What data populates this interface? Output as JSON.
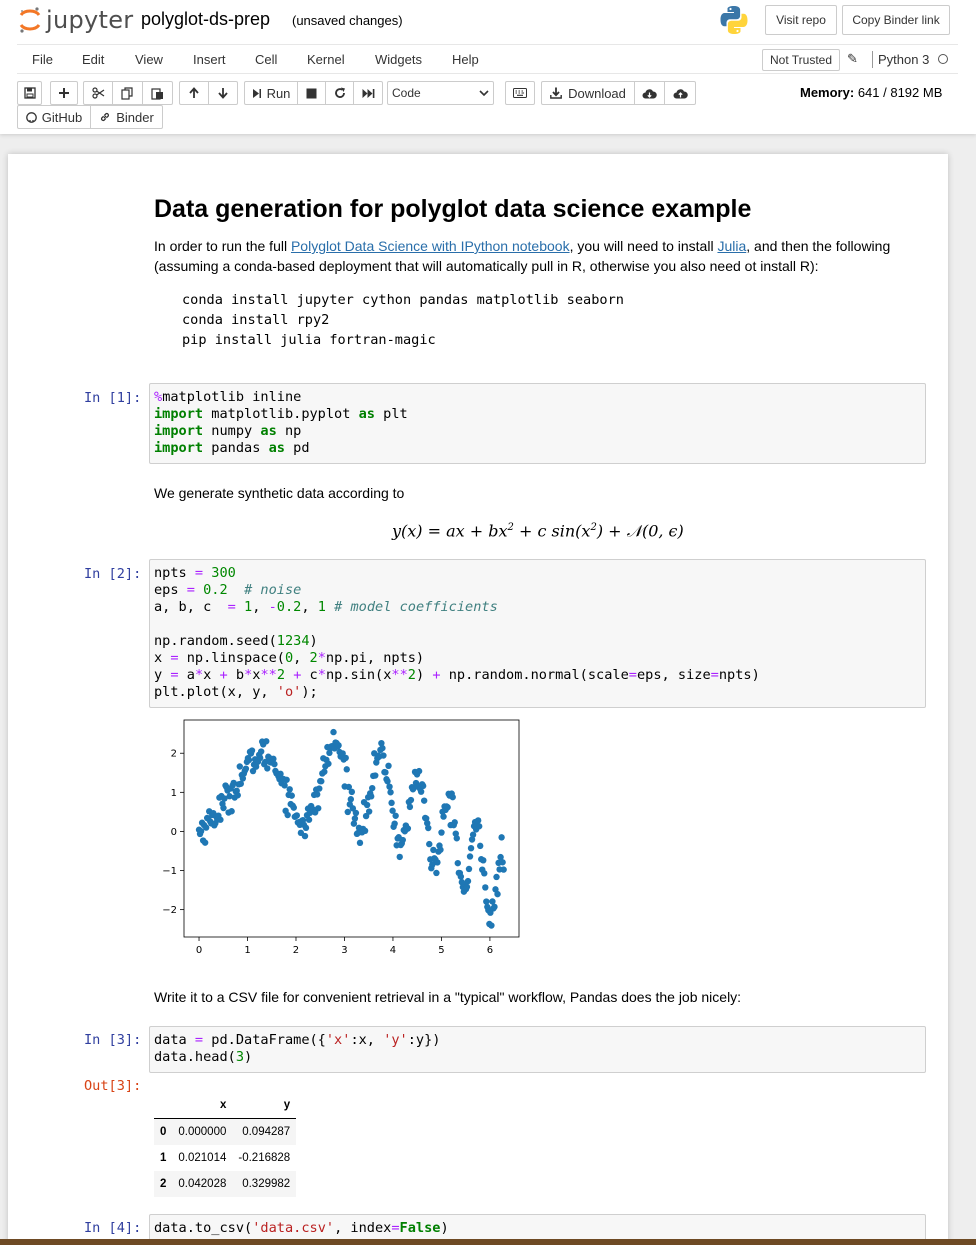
{
  "header": {
    "logo_text": "jupyter",
    "notebook_title": "polyglot-ds-prep",
    "save_status": "(unsaved changes)",
    "visit_repo": "Visit repo",
    "copy_binder": "Copy Binder link"
  },
  "menu": {
    "items": [
      "File",
      "Edit",
      "View",
      "Insert",
      "Cell",
      "Kernel",
      "Widgets",
      "Help"
    ],
    "not_trusted": "Not Trusted",
    "kernel_name": "Python 3"
  },
  "toolbar": {
    "run_label": "Run",
    "cell_type": "Code",
    "download_label": "Download",
    "github_label": "GitHub",
    "binder_label": "Binder",
    "memory_label": "Memory:",
    "memory_value": "641 / 8192 MB"
  },
  "cells": {
    "md1": {
      "title": "Data generation for polyglot data science example",
      "p_before": "In order to run the full ",
      "link1": "Polyglot Data Science with IPython notebook",
      "p_mid": ", you will need to install ",
      "link2": "Julia",
      "p_after": ", and then the following (assuming a conda-based deployment that will automatically pull in R, otherwise you also need ot install R):",
      "code_lines": [
        "conda install jupyter cython pandas matplotlib seaborn",
        "conda install rpy2",
        "pip install julia fortran-magic"
      ]
    },
    "c1": {
      "prompt": "In [1]:"
    },
    "md2": {
      "text": "We generate synthetic data according to"
    },
    "c2": {
      "prompt": "In [2]:"
    },
    "md3": {
      "text": "Write it to a CSV file for convenient retrieval in a \"typical\" workflow, Pandas does the job nicely:"
    },
    "c3": {
      "prompt": "In [3]:",
      "out_prompt": "Out[3]:"
    },
    "c4": {
      "prompt": "In [4]:"
    }
  },
  "dataframe": {
    "columns": [
      "",
      "x",
      "y"
    ],
    "rows": [
      [
        "0",
        "0.000000",
        "0.094287"
      ],
      [
        "1",
        "0.021014",
        "-0.216828"
      ],
      [
        "2",
        "0.042028",
        "0.329982"
      ]
    ]
  },
  "chart_data": {
    "type": "scatter",
    "title": "",
    "xlabel": "",
    "ylabel": "",
    "xlim": [
      -0.31,
      6.6
    ],
    "ylim": [
      -2.7,
      2.85
    ],
    "xticks": [
      "0",
      "1",
      "2",
      "3",
      "4",
      "5",
      "6"
    ],
    "yticks": [
      "−2",
      "−1",
      "0",
      "1",
      "2"
    ],
    "color": "#1f77b4",
    "generator": {
      "npts": 300,
      "eps": 0.2,
      "a": 1,
      "b": -0.2,
      "c": 1,
      "seed": 1234
    }
  }
}
